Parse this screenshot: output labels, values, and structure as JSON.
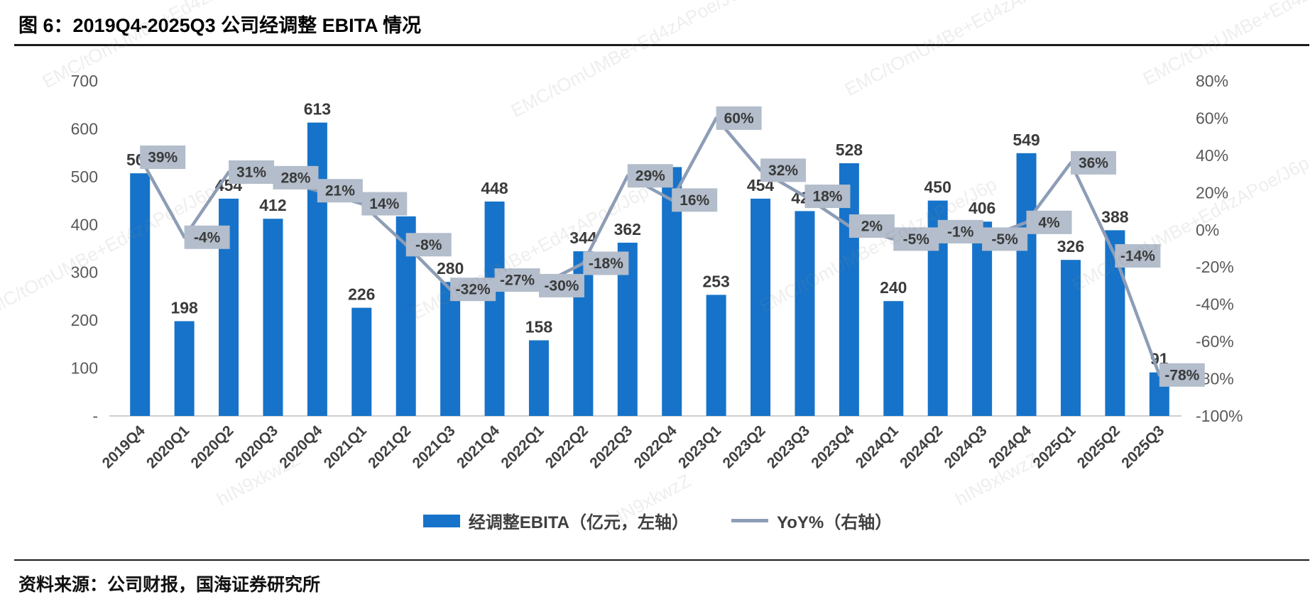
{
  "figure": {
    "title": "图 6：2019Q4-2025Q3 公司经调整 EBITA 情况",
    "source": "资料来源：公司财报，国海证券研究所"
  },
  "legend": {
    "bar_label": "经调整EBITA（亿元，左轴）",
    "line_label": "YoY%（右轴）"
  },
  "colors": {
    "bar": "#1673C9",
    "line": "#8D9DB6",
    "badge_bg": "#B3BDCB",
    "baseline": "#BFBFBF"
  },
  "watermark": {
    "texts": [
      "EMC/tOmUMBe+Ed4zAPoe/J6p",
      "hIN9xkwzZ"
    ]
  },
  "chart_data": {
    "type": "bar+line",
    "title": "2019Q4-2025Q3 公司经调整 EBITA 情况",
    "grid": false,
    "legend_position": "bottom",
    "categories": [
      "2019Q4",
      "2020Q1",
      "2020Q2",
      "2020Q3",
      "2020Q4",
      "2021Q1",
      "2021Q2",
      "2021Q3",
      "2021Q4",
      "2022Q1",
      "2022Q2",
      "2022Q3",
      "2022Q4",
      "2023Q1",
      "2023Q2",
      "2023Q3",
      "2023Q4",
      "2024Q1",
      "2024Q2",
      "2024Q3",
      "2024Q4",
      "2025Q1",
      "2025Q2",
      "2025Q3"
    ],
    "series": [
      {
        "name": "经调整EBITA（亿元，左轴）",
        "type": "bar",
        "axis": "left",
        "values": [
          507,
          198,
          454,
          412,
          613,
          226,
          417,
          280,
          448,
          158,
          344,
          362,
          520,
          253,
          454,
          428,
          528,
          240,
          450,
          406,
          549,
          326,
          388,
          91
        ],
        "value_labels": [
          "507",
          "198",
          "454",
          "412",
          "613",
          "226",
          "",
          "280",
          "448",
          "158",
          "344",
          "362",
          "",
          "253",
          "454",
          "428",
          "528",
          "240",
          "450",
          "406",
          "549",
          "326",
          "388",
          "91"
        ]
      },
      {
        "name": "YoY%（右轴）",
        "type": "line",
        "axis": "right",
        "values": [
          39,
          -4,
          31,
          28,
          21,
          14,
          -8,
          -32,
          -27,
          -30,
          -18,
          29,
          16,
          60,
          32,
          18,
          2,
          -5,
          -1,
          -5,
          4,
          36,
          -14,
          -78
        ],
        "value_labels": [
          "39%",
          "-4%",
          "31%",
          "28%",
          "21%",
          "14%",
          "-8%",
          "-32%",
          "-27%",
          "-30%",
          "-18%",
          "29%",
          "16%",
          "60%",
          "32%",
          "18%",
          "2%",
          "-5%",
          "-1%",
          "-5%",
          "4%",
          "36%",
          "-14%",
          "-78%"
        ]
      }
    ],
    "left_axis": {
      "min": 0,
      "max": 700,
      "tick_values": [
        700,
        600,
        500,
        400,
        300,
        200,
        100,
        0
      ],
      "tick_labels": [
        "700",
        "600",
        "500",
        "400",
        "300",
        "200",
        "100",
        "-"
      ]
    },
    "right_axis": {
      "min": -100,
      "max": 80,
      "tick_values": [
        80,
        60,
        40,
        20,
        0,
        -20,
        -40,
        -60,
        -80,
        -100
      ],
      "tick_labels": [
        "80%",
        "60%",
        "40%",
        "20%",
        "0%",
        "-20%",
        "-40%",
        "-60%",
        "-80%",
        "-100%"
      ]
    }
  }
}
